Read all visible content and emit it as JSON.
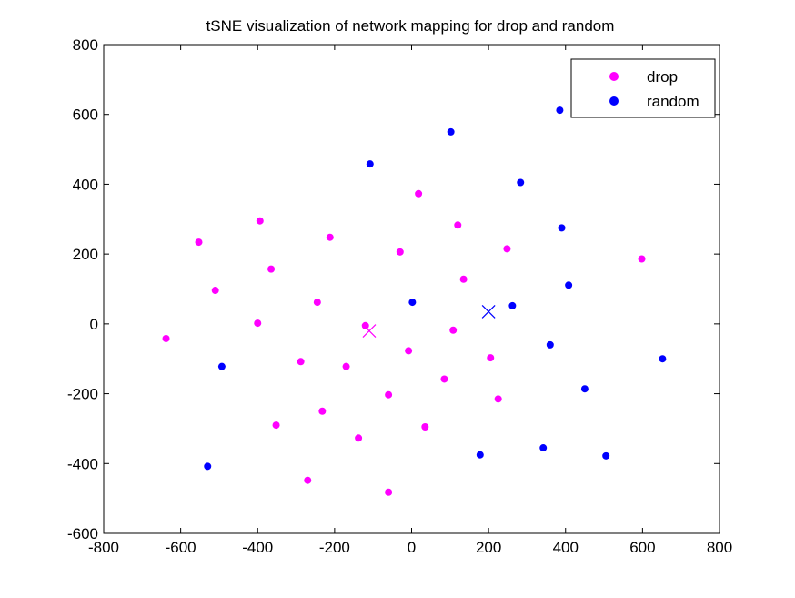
{
  "chart_data": {
    "type": "scatter",
    "title": "tSNE visualization of network mapping for drop and random",
    "xlabel": "",
    "ylabel": "",
    "xlim": [
      -800,
      800
    ],
    "ylim": [
      -600,
      800
    ],
    "xticks": [
      -800,
      -600,
      -400,
      -200,
      0,
      200,
      400,
      600,
      800
    ],
    "yticks": [
      -600,
      -400,
      -200,
      0,
      200,
      400,
      600,
      800
    ],
    "xtick_labels": [
      "-800",
      "-600",
      "-400",
      "-200",
      "0",
      "200",
      "400",
      "600",
      "800"
    ],
    "ytick_labels": [
      "-600",
      "-400",
      "-200",
      "0",
      "200",
      "400",
      "600",
      "800"
    ],
    "grid": false,
    "legend_position": "top-right",
    "series": [
      {
        "name": "drop",
        "color": "#ff00ff",
        "points": [
          [
            -638,
            -42
          ],
          [
            -553,
            234
          ],
          [
            -510,
            96
          ],
          [
            -394,
            295
          ],
          [
            -400,
            2
          ],
          [
            -365,
            157
          ],
          [
            -352,
            -290
          ],
          [
            -288,
            -108
          ],
          [
            -270,
            -448
          ],
          [
            -245,
            62
          ],
          [
            -232,
            -250
          ],
          [
            -212,
            248
          ],
          [
            -170,
            -122
          ],
          [
            -138,
            -327
          ],
          [
            -120,
            -5
          ],
          [
            -60,
            -203
          ],
          [
            -60,
            -482
          ],
          [
            -30,
            206
          ],
          [
            -8,
            -77
          ],
          [
            18,
            373
          ],
          [
            35,
            -295
          ],
          [
            85,
            -158
          ],
          [
            108,
            -18
          ],
          [
            120,
            283
          ],
          [
            135,
            128
          ],
          [
            205,
            -97
          ],
          [
            225,
            -215
          ],
          [
            248,
            215
          ],
          [
            598,
            186
          ]
        ]
      },
      {
        "name": "random",
        "color": "#0000ff",
        "points": [
          [
            -530,
            -408
          ],
          [
            -493,
            -122
          ],
          [
            -108,
            458
          ],
          [
            2,
            62
          ],
          [
            102,
            550
          ],
          [
            178,
            -375
          ],
          [
            262,
            52
          ],
          [
            283,
            405
          ],
          [
            342,
            -355
          ],
          [
            360,
            -60
          ],
          [
            385,
            612
          ],
          [
            390,
            275
          ],
          [
            408,
            111
          ],
          [
            450,
            -186
          ],
          [
            505,
            -378
          ],
          [
            652,
            -100
          ]
        ]
      }
    ],
    "centroids": [
      {
        "series": "drop",
        "marker": "x",
        "x": -110,
        "y": -20,
        "color": "#ff00ff"
      },
      {
        "series": "random",
        "marker": "x",
        "x": 200,
        "y": 35,
        "color": "#0000ff"
      }
    ]
  }
}
